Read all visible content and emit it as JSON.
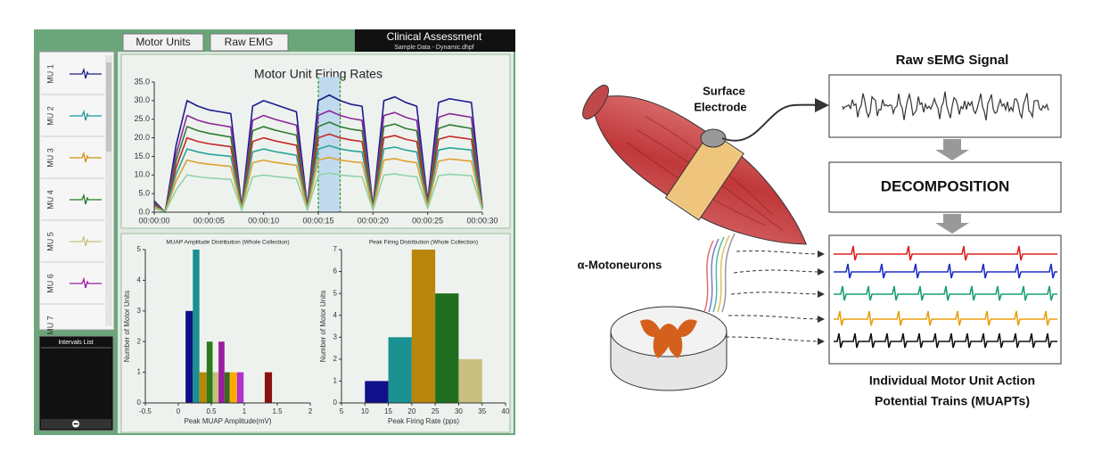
{
  "ui": {
    "tabs": [
      "Motor Units",
      "Raw EMG"
    ],
    "header": {
      "title": "Clinical Assessment",
      "subtitle": "Sample Data - Dynamic.dhpf"
    },
    "mu_list": [
      "MU 1",
      "MU 2",
      "MU 3",
      "MU 4",
      "MU 5",
      "MU 6",
      "MU 7"
    ],
    "intervals": "Intervals List"
  },
  "chart_data": [
    {
      "type": "line",
      "title": "Motor Unit Firing Rates",
      "x": [
        0,
        1,
        2,
        3,
        4,
        5,
        6,
        7,
        8,
        9,
        10,
        11,
        12,
        13,
        14,
        15,
        16,
        17,
        18,
        19,
        20,
        21,
        22,
        23,
        24,
        25,
        26,
        27,
        28,
        29,
        30
      ],
      "xlim": [
        0,
        30
      ],
      "xticks": [
        {
          "value": 0,
          "label": "00:00:00"
        },
        {
          "value": 5,
          "label": "00:00:05"
        },
        {
          "value": 10,
          "label": "00:00:10"
        },
        {
          "value": 15,
          "label": "00:00:15"
        },
        {
          "value": 20,
          "label": "00:00:20"
        },
        {
          "value": 25,
          "label": "00:00:25"
        },
        {
          "value": 30,
          "label": "00:00:30"
        }
      ],
      "ylim": [
        0,
        35
      ],
      "yticks": [
        {
          "value": 0,
          "label": "0.0"
        },
        {
          "value": 5,
          "label": "5.0"
        },
        {
          "value": 10,
          "label": "10.0"
        },
        {
          "value": 15,
          "label": "15.0"
        },
        {
          "value": 20,
          "label": "20.0"
        },
        {
          "value": 25,
          "label": "25.0"
        },
        {
          "value": 30,
          "label": "30.0"
        },
        {
          "value": 35,
          "label": "35.0"
        }
      ],
      "selection": [
        15,
        17
      ],
      "series": [
        {
          "color": "#1c1c8c",
          "values": [
            3,
            0,
            18,
            30,
            28.5,
            27.5,
            27,
            26.5,
            1.5,
            28.5,
            30,
            29,
            28,
            27,
            1.5,
            30,
            31.5,
            30,
            29,
            28.5,
            1.5,
            30,
            31,
            29.5,
            28.5,
            3,
            29.5,
            30.5,
            30,
            29.5,
            1.5
          ]
        },
        {
          "color": "#8a2b9a",
          "values": [
            2.6,
            0,
            15.6,
            26,
            24.7,
            23.9,
            23.4,
            22.9,
            1.3,
            24.7,
            26,
            25,
            24.2,
            23.4,
            1.3,
            26,
            27.3,
            26,
            25.2,
            24.7,
            1.3,
            26,
            26.8,
            25.5,
            24.7,
            2.6,
            25.5,
            26.5,
            26,
            25.5,
            1.3
          ]
        },
        {
          "color": "#2e7d32",
          "values": [
            2.3,
            0,
            13.8,
            23,
            21.9,
            21.2,
            20.7,
            20.2,
            1.2,
            21.9,
            23,
            22.1,
            21.4,
            20.7,
            1.2,
            23,
            24.2,
            23,
            22.3,
            21.9,
            1.2,
            23,
            23.7,
            22.5,
            21.9,
            2.3,
            22.5,
            23.5,
            23,
            22.5,
            1.2
          ]
        },
        {
          "color": "#c62828",
          "values": [
            2,
            0,
            12,
            20,
            19,
            18.4,
            18,
            17.6,
            1,
            19,
            20,
            19.2,
            18.6,
            18,
            1,
            20,
            21,
            20,
            19.4,
            19,
            1,
            20,
            20.6,
            19.6,
            19,
            2,
            19.6,
            20.4,
            20,
            19.6,
            1
          ]
        },
        {
          "color": "#26a69a",
          "values": [
            1.7,
            0,
            10.2,
            17,
            16.2,
            15.6,
            15.3,
            15,
            0.9,
            16.2,
            17,
            16.3,
            15.8,
            15.3,
            0.9,
            17,
            17.9,
            17,
            16.5,
            16.2,
            0.9,
            17,
            17.5,
            16.7,
            16.2,
            1.7,
            16.7,
            17.3,
            17,
            16.7,
            0.9
          ]
        },
        {
          "color": "#e0a030",
          "values": [
            1.4,
            0,
            8.4,
            14,
            13.3,
            12.9,
            12.6,
            12.3,
            0.7,
            13.3,
            14,
            13.4,
            13,
            12.6,
            0.7,
            14,
            14.7,
            14,
            13.6,
            13.3,
            0.7,
            14,
            14.4,
            13.7,
            13.3,
            1.4,
            13.7,
            14.3,
            14,
            13.7,
            0.7
          ]
        },
        {
          "color": "#8fd3a8",
          "values": [
            1,
            0,
            6,
            10,
            9.5,
            9.2,
            9,
            8.8,
            0.5,
            9.5,
            10,
            9.6,
            9.3,
            9,
            0.5,
            10,
            10.5,
            10,
            9.7,
            9.5,
            0.5,
            10,
            10.3,
            9.8,
            9.5,
            1,
            9.8,
            10.2,
            10,
            9.8,
            0.5
          ]
        }
      ]
    },
    {
      "type": "histogram",
      "title": "MUAP Amplitude Distribution (Whole Collection)",
      "x_label": "Peak MUAP Amplitude(mV)",
      "y_label": "Number of Motor Units",
      "bins": [
        0.11,
        0.22,
        0.32,
        0.43,
        0.52,
        0.61,
        0.7,
        0.78,
        0.89,
        0.99,
        1.31,
        1.42
      ],
      "counts": [
        3,
        5,
        1,
        2,
        1,
        2,
        1,
        1,
        1,
        0,
        1
      ],
      "colors": [
        "#10108a",
        "#1a9090",
        "#b8860b",
        "#2a7a1a",
        "#c8c080",
        "#9a1aa0",
        "#3a6a1a",
        "#ffaa00",
        "#b030d0",
        "#b0b0b0",
        "#8b1010"
      ],
      "xlim": [
        -0.5,
        2
      ],
      "xticks": [
        -0.5,
        0,
        0.5,
        1,
        1.5,
        2
      ],
      "ylim": [
        0,
        5
      ],
      "yticks": [
        0,
        1,
        2,
        3,
        4,
        5
      ]
    },
    {
      "type": "histogram",
      "title": "Peak Firing Distribution (Whole Collection)",
      "x_label": "Peak Firing Rate (pps)",
      "y_label": "Number of Motor Units",
      "bins": [
        10,
        15,
        20,
        25,
        30,
        35
      ],
      "counts": [
        1,
        3,
        7,
        5,
        2
      ],
      "colors": [
        "#10108a",
        "#1a9090",
        "#b8860b",
        "#1f6e1f",
        "#c8c080"
      ],
      "xlim": [
        5,
        40
      ],
      "xticks": [
        5,
        10,
        15,
        20,
        25,
        30,
        35,
        40
      ],
      "ylim": [
        0,
        7
      ],
      "yticks": [
        0,
        1,
        2,
        3,
        4,
        5,
        6,
        7
      ]
    }
  ],
  "diagram": {
    "signal_title": "Raw sEMG Signal",
    "electrode_label": [
      "Surface",
      "Electrode"
    ],
    "decomposition": "DECOMPOSITION",
    "neurons": "α-Motoneurons",
    "output_label": [
      "Individual Motor Unit Action",
      "Potential Trains (MUAPTs)"
    ]
  }
}
